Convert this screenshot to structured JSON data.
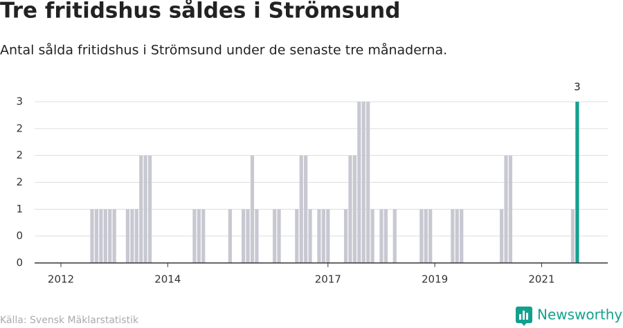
{
  "chart_data": {
    "type": "bar",
    "title": "Tre fritidshus såldes i Strömsund",
    "subtitle": "Antal sålda fritidshus i Strömsund under de senaste tre månaderna.",
    "source": "Källa: Svensk Mäklarstatistik",
    "brand": "Newsworthy",
    "categories": [
      null,
      null,
      null,
      null,
      null,
      "2012",
      null,
      null,
      null,
      null,
      null,
      null,
      null,
      null,
      null,
      null,
      null,
      null,
      null,
      null,
      null,
      null,
      null,
      null,
      null,
      null,
      null,
      null,
      null,
      "2014",
      null,
      null,
      null,
      null,
      null,
      null,
      null,
      null,
      null,
      null,
      null,
      null,
      null,
      null,
      null,
      null,
      null,
      null,
      null,
      null,
      null,
      null,
      null,
      null,
      null,
      null,
      null,
      null,
      null,
      null,
      null,
      null,
      null,
      null,
      null,
      "2017",
      null,
      null,
      null,
      null,
      null,
      null,
      null,
      null,
      null,
      null,
      null,
      null,
      null,
      null,
      null,
      null,
      null,
      null,
      null,
      null,
      null,
      null,
      null,
      "2019",
      null,
      null,
      null,
      null,
      null,
      null,
      null,
      null,
      null,
      null,
      null,
      null,
      null,
      null,
      null,
      null,
      null,
      null,
      null,
      null,
      null,
      null,
      null,
      "2021",
      null,
      null,
      null,
      null,
      null,
      null,
      null,
      null
    ],
    "values": [
      0,
      0,
      0,
      0,
      0,
      0,
      0,
      0,
      0,
      0,
      0,
      0,
      1,
      1,
      1,
      1,
      1,
      1,
      0,
      0,
      1,
      1,
      1,
      2,
      2,
      2,
      0,
      0,
      0,
      0,
      0,
      0,
      0,
      0,
      0,
      1,
      1,
      1,
      0,
      0,
      0,
      0,
      0,
      1,
      0,
      0,
      1,
      1,
      2,
      1,
      0,
      0,
      0,
      1,
      1,
      0,
      0,
      0,
      1,
      2,
      2,
      1,
      0,
      1,
      1,
      1,
      0,
      0,
      0,
      1,
      2,
      2,
      3,
      3,
      3,
      1,
      0,
      1,
      1,
      0,
      1,
      0,
      0,
      0,
      0,
      0,
      1,
      1,
      1,
      0,
      0,
      0,
      0,
      1,
      1,
      1,
      0,
      0,
      0,
      0,
      0,
      0,
      0,
      0,
      1,
      2,
      2,
      0,
      0,
      0,
      0,
      0,
      0,
      0,
      0,
      0,
      0,
      0,
      0,
      0,
      1,
      3
    ],
    "color": "#c8c8d2",
    "highlight_color": "#13a08d",
    "ylim": [
      0,
      3
    ],
    "yticks": [
      0,
      {
        "value": 0.5,
        "label": "0"
      },
      1,
      {
        "value": 1.5,
        "label": "2"
      },
      2,
      {
        "value": 2.5,
        "label": "2"
      },
      3
    ],
    "grid": true
  }
}
